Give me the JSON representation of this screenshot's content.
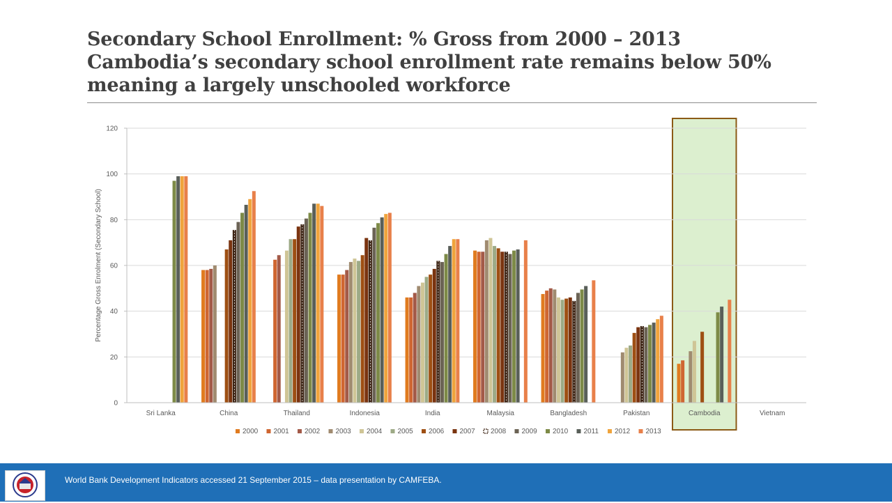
{
  "slide": {
    "title_lines": [
      "Secondary School Enrollment:  % Gross from 2000 – 2013",
      "Cambodia’s secondary school enrollment rate remains below 50%",
      "meaning a largely unschooled workforce"
    ],
    "footer_text": "World Bank Development Indicators accessed 21 September 2015 – data presentation by CAMFEBA.",
    "logo_icon": "camfeba-logo-icon"
  },
  "chart_data": {
    "type": "bar",
    "ylabel": "Percentage Gross Enrolment (Secondary School)",
    "ylim": [
      0,
      120
    ],
    "yticks": [
      0,
      20,
      40,
      60,
      80,
      100,
      120
    ],
    "grid": true,
    "legend_position": "bottom",
    "highlight_category": "Cambodia",
    "highlight_color": "#dcefcf",
    "highlight_border": "#8b5a16",
    "categories": [
      "Sri Lanka",
      "China",
      "Thailand",
      "Indonesia",
      "India",
      "Malaysia",
      "Bangladesh",
      "Pakistan",
      "Cambodia",
      "Vietnam"
    ],
    "series": [
      {
        "name": "2000",
        "color": "#e07b1f",
        "values": [
          null,
          58,
          null,
          56,
          46,
          66.5,
          47.5,
          null,
          17,
          null
        ]
      },
      {
        "name": "2001",
        "color": "#cf6631",
        "values": [
          null,
          58,
          62.5,
          56,
          46,
          66,
          49,
          null,
          18.5,
          null
        ]
      },
      {
        "name": "2002",
        "color": "#a35a48",
        "values": [
          null,
          58.5,
          64.5,
          58,
          48,
          66,
          50,
          null,
          null,
          null
        ]
      },
      {
        "name": "2003",
        "color": "#a08b70",
        "values": [
          null,
          60,
          null,
          61.5,
          51,
          71,
          49.5,
          22,
          22.5,
          null
        ]
      },
      {
        "name": "2004",
        "color": "#cfc596",
        "values": [
          null,
          null,
          66.5,
          63,
          52.5,
          72,
          46,
          24,
          27,
          null
        ]
      },
      {
        "name": "2005",
        "color": "#9daa86",
        "values": [
          null,
          null,
          71.5,
          62,
          55,
          68.5,
          45,
          25,
          null,
          null
        ]
      },
      {
        "name": "2006",
        "color": "#9e4f13",
        "values": [
          null,
          67,
          71.5,
          64.5,
          56,
          67.5,
          45.5,
          30.5,
          31,
          null
        ]
      },
      {
        "name": "2007",
        "color": "#7a3410",
        "values": [
          null,
          71,
          77,
          72,
          58.5,
          66,
          46,
          33,
          null,
          null
        ]
      },
      {
        "name": "2008",
        "color": "#3b2212",
        "dashed": true,
        "values": [
          null,
          75.5,
          78,
          71,
          62,
          66,
          44.5,
          33.5,
          null,
          null
        ]
      },
      {
        "name": "2009",
        "color": "#6b6355",
        "values": [
          null,
          79,
          80.5,
          76.5,
          61.5,
          65,
          48,
          33,
          null,
          null
        ]
      },
      {
        "name": "2010",
        "color": "#7d8a47",
        "values": [
          97,
          83,
          83,
          78.5,
          65,
          66.5,
          49.5,
          34,
          39.5,
          null
        ]
      },
      {
        "name": "2011",
        "color": "#595f59",
        "values": [
          99,
          86.5,
          87,
          81,
          68.5,
          67,
          51,
          35,
          42,
          null
        ]
      },
      {
        "name": "2012",
        "color": "#f0a43c",
        "values": [
          99,
          89,
          87,
          82.5,
          71.5,
          null,
          null,
          36.5,
          null,
          null
        ]
      },
      {
        "name": "2013",
        "color": "#e8804a",
        "values": [
          99,
          92.5,
          86,
          83,
          71.5,
          71,
          53.5,
          38,
          45,
          null
        ]
      }
    ]
  }
}
